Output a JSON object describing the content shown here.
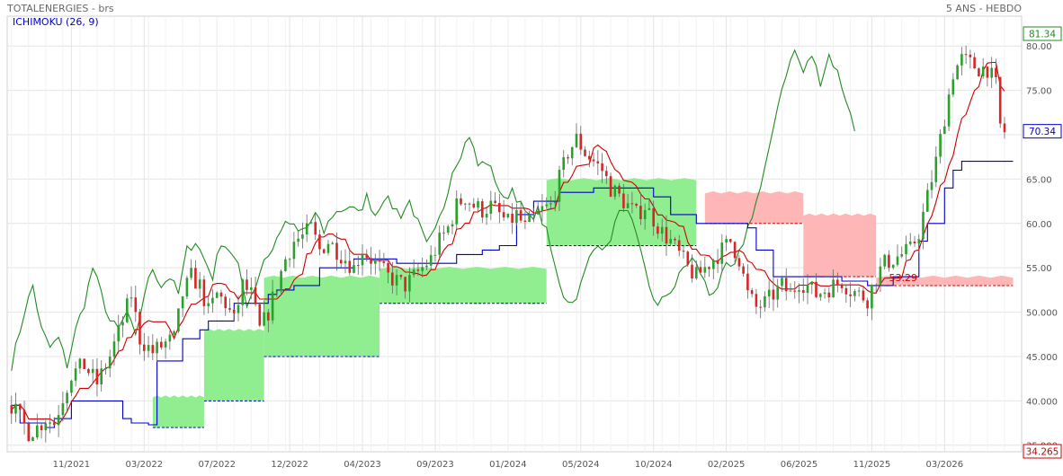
{
  "header": {
    "title": "TOTALENERGIES - brs",
    "period": "5 ANS - HEBDO",
    "indicator": "ICHIMOKU (26, 9)"
  },
  "colors": {
    "bull_candle": "#2ca02c",
    "bear_candle": "#d62728",
    "tenkan": "#cc0000",
    "kijun": "#0000cc",
    "chikou": "#228b22",
    "kumo_bull_fill": "#90ee90",
    "kumo_bear_fill": "#ffb6b6",
    "grid": "#e4e4e4",
    "axis_text": "#555555"
  },
  "chart_data": {
    "type": "candlestick",
    "title": "TOTALENERGIES - brs",
    "subtitle": "5 ANS - HEBDO",
    "indicator": "ICHIMOKU (26, 9)",
    "ylim": [
      34.265,
      81.34
    ],
    "y_ticks": [
      35,
      40,
      45,
      50,
      55,
      60,
      65,
      70,
      75,
      80
    ],
    "y_tick_labels": [
      "35.000",
      "40.000",
      "45.000",
      "50.000",
      "55.00",
      "60.00",
      "65.00",
      "70.00",
      "75.00",
      "80.00"
    ],
    "x_ticks": [
      {
        "label": "11/2021",
        "week": 14
      },
      {
        "label": "03/2022",
        "week": 31
      },
      {
        "label": "07/2022",
        "week": 48
      },
      {
        "label": "12/2022",
        "week": 65
      },
      {
        "label": "04/2023",
        "week": 82
      },
      {
        "label": "09/2023",
        "week": 99
      },
      {
        "label": "01/2024",
        "week": 116
      },
      {
        "label": "05/2024",
        "week": 133
      },
      {
        "label": "10/2024",
        "week": 150
      },
      {
        "label": "02/2025",
        "week": 167
      },
      {
        "label": "06/2025",
        "week": 184
      },
      {
        "label": "11/2025",
        "week": 201
      },
      {
        "label": "03/2026",
        "week": 218
      }
    ],
    "x_range": [
      -1,
      236
    ],
    "price_anchors": [
      [
        0,
        39.5
      ],
      [
        2,
        38.0
      ],
      [
        4,
        36.5
      ],
      [
        6,
        37.0
      ],
      [
        8,
        38.0
      ],
      [
        10,
        37.5
      ],
      [
        12,
        40.5
      ],
      [
        14,
        43.0
      ],
      [
        17,
        44.0
      ],
      [
        20,
        42.0
      ],
      [
        23,
        45.0
      ],
      [
        26,
        49.0
      ],
      [
        28,
        52.0
      ],
      [
        30,
        47.0
      ],
      [
        33,
        45.5
      ],
      [
        36,
        46.5
      ],
      [
        38,
        47.0
      ],
      [
        40,
        52.0
      ],
      [
        42,
        54.0
      ],
      [
        44,
        53.0
      ],
      [
        46,
        50.0
      ],
      [
        48,
        52.0
      ],
      [
        50,
        51.0
      ],
      [
        52,
        49.0
      ],
      [
        54,
        53.0
      ],
      [
        56,
        52.0
      ],
      [
        58,
        48.0
      ],
      [
        60,
        50.0
      ],
      [
        62,
        53.0
      ],
      [
        64,
        56.0
      ],
      [
        66,
        58.0
      ],
      [
        68,
        58.5
      ],
      [
        70,
        59.5
      ],
      [
        72,
        57.0
      ],
      [
        74,
        58.0
      ],
      [
        76,
        57.0
      ],
      [
        78,
        56.0
      ],
      [
        80,
        55.0
      ],
      [
        82,
        57.0
      ],
      [
        84,
        56.0
      ],
      [
        86,
        55.0
      ],
      [
        88,
        54.0
      ],
      [
        90,
        53.5
      ],
      [
        92,
        53.0
      ],
      [
        94,
        54.0
      ],
      [
        96,
        55.0
      ],
      [
        98,
        56.0
      ],
      [
        100,
        58.0
      ],
      [
        102,
        59.5
      ],
      [
        104,
        62.0
      ],
      [
        106,
        63.0
      ],
      [
        108,
        62.0
      ],
      [
        110,
        61.5
      ],
      [
        112,
        62.0
      ],
      [
        114,
        61.0
      ],
      [
        116,
        60.0
      ],
      [
        118,
        61.0
      ],
      [
        120,
        59.5
      ],
      [
        122,
        60.5
      ],
      [
        124,
        61.5
      ],
      [
        126,
        62.0
      ],
      [
        128,
        65.0
      ],
      [
        130,
        68.0
      ],
      [
        132,
        69.5
      ],
      [
        134,
        68.0
      ],
      [
        136,
        67.0
      ],
      [
        138,
        66.0
      ],
      [
        140,
        64.0
      ],
      [
        142,
        63.0
      ],
      [
        144,
        62.0
      ],
      [
        146,
        61.0
      ],
      [
        148,
        62.0
      ],
      [
        150,
        60.5
      ],
      [
        152,
        59.0
      ],
      [
        154,
        58.0
      ],
      [
        156,
        56.5
      ],
      [
        158,
        55.0
      ],
      [
        160,
        54.0
      ],
      [
        162,
        55.0
      ],
      [
        164,
        56.0
      ],
      [
        166,
        57.0
      ],
      [
        168,
        58.0
      ],
      [
        170,
        56.0
      ],
      [
        172,
        52.0
      ],
      [
        174,
        50.5
      ],
      [
        176,
        51.0
      ],
      [
        178,
        52.0
      ],
      [
        180,
        53.0
      ],
      [
        182,
        52.0
      ],
      [
        184,
        53.5
      ],
      [
        186,
        53.0
      ],
      [
        188,
        52.0
      ],
      [
        190,
        52.5
      ],
      [
        192,
        53.0
      ],
      [
        194,
        53.5
      ],
      [
        196,
        52.5
      ],
      [
        198,
        52.0
      ],
      [
        200,
        51.5
      ],
      [
        202,
        54.0
      ],
      [
        204,
        55.5
      ],
      [
        206,
        56.0
      ],
      [
        208,
        56.5
      ],
      [
        210,
        57.0
      ],
      [
        212,
        59.0
      ],
      [
        214,
        63.0
      ],
      [
        216,
        67.0
      ],
      [
        218,
        72.0
      ],
      [
        220,
        77.0
      ],
      [
        222,
        78.5
      ],
      [
        224,
        78.0
      ],
      [
        226,
        77.5
      ],
      [
        228,
        77.5
      ],
      [
        230,
        75.5
      ],
      [
        231,
        71.0
      ],
      [
        232,
        70.34
      ]
    ],
    "kumo_segments": [
      {
        "kind": "bull",
        "x0": 33,
        "x1": 45,
        "top": 40.5,
        "bottom": 37.0
      },
      {
        "kind": "bull",
        "x0": 45,
        "x1": 59,
        "top": 48.0,
        "bottom": 40.0
      },
      {
        "kind": "bull",
        "x0": 59,
        "x1": 86,
        "top": 54.0,
        "bottom": 45.0
      },
      {
        "kind": "bull",
        "x0": 86,
        "x1": 125,
        "top": 55.0,
        "bottom": 51.0
      },
      {
        "kind": "bull",
        "x0": 125,
        "x1": 160,
        "top": 65.0,
        "bottom": 57.5
      },
      {
        "kind": "bear",
        "x0": 162,
        "x1": 185,
        "top": 63.5,
        "bottom": 60.0
      },
      {
        "kind": "bear",
        "x0": 185,
        "x1": 202,
        "top": 61.0,
        "bottom": 54.0
      },
      {
        "kind": "bear",
        "x0": 202,
        "x1": 234,
        "top": 54.0,
        "bottom": 53.0
      }
    ],
    "chikou_anchors": [
      [
        0,
        44.0
      ],
      [
        3,
        50.0
      ],
      [
        5,
        53.0
      ],
      [
        7,
        48.0
      ],
      [
        9,
        46.0
      ],
      [
        11,
        47.0
      ],
      [
        13,
        44.0
      ],
      [
        15,
        48.0
      ],
      [
        17,
        51.0
      ],
      [
        19,
        55.0
      ],
      [
        21,
        52.0
      ],
      [
        23,
        49.0
      ],
      [
        25,
        48.0
      ],
      [
        27,
        50.0
      ],
      [
        29,
        47.0
      ],
      [
        31,
        52.0
      ],
      [
        33,
        55.0
      ],
      [
        35,
        53.0
      ],
      [
        37,
        54.0
      ],
      [
        39,
        52.0
      ],
      [
        41,
        57.0
      ],
      [
        43,
        58.0
      ],
      [
        45,
        56.0
      ],
      [
        47,
        54.0
      ],
      [
        49,
        58.0
      ],
      [
        51,
        57.0
      ],
      [
        53,
        55.0
      ],
      [
        55,
        51.0
      ],
      [
        57,
        53.0
      ],
      [
        59,
        56.0
      ],
      [
        61,
        57.0
      ],
      [
        63,
        59.5
      ],
      [
        65,
        60.0
      ],
      [
        67,
        59.0
      ],
      [
        69,
        59.5
      ],
      [
        71,
        61.0
      ],
      [
        73,
        59.0
      ],
      [
        75,
        61.0
      ],
      [
        77,
        61.5
      ],
      [
        79,
        62.0
      ],
      [
        81,
        61.0
      ],
      [
        83,
        63.0
      ],
      [
        85,
        61.0
      ],
      [
        87,
        63.0
      ],
      [
        89,
        62.0
      ],
      [
        91,
        61.0
      ],
      [
        93,
        62.5
      ],
      [
        95,
        60.0
      ],
      [
        97,
        57.5
      ],
      [
        99,
        59.0
      ],
      [
        101,
        62.0
      ],
      [
        103,
        66.0
      ],
      [
        105,
        68.0
      ],
      [
        107,
        70.0
      ],
      [
        109,
        66.5
      ],
      [
        111,
        67.0
      ],
      [
        113,
        65.0
      ],
      [
        115,
        62.5
      ],
      [
        117,
        64.0
      ],
      [
        119,
        62.0
      ],
      [
        121,
        60.5
      ],
      [
        123,
        61.5
      ],
      [
        125,
        59.0
      ],
      [
        127,
        55.0
      ],
      [
        129,
        52.0
      ],
      [
        131,
        51.0
      ],
      [
        133,
        53.0
      ],
      [
        135,
        56.0
      ],
      [
        137,
        58.0
      ],
      [
        139,
        57.0
      ],
      [
        141,
        60.0
      ],
      [
        143,
        62.0
      ],
      [
        145,
        60.0
      ],
      [
        147,
        56.5
      ],
      [
        149,
        53.0
      ],
      [
        151,
        50.5
      ],
      [
        153,
        52.0
      ],
      [
        155,
        53.0
      ],
      [
        157,
        55.0
      ],
      [
        159,
        56.0
      ],
      [
        161,
        54.5
      ],
      [
        163,
        52.0
      ],
      [
        165,
        53.0
      ],
      [
        167,
        55.0
      ],
      [
        169,
        55.0
      ],
      [
        171,
        58.0
      ],
      [
        173,
        61.0
      ],
      [
        175,
        64.0
      ],
      [
        177,
        68.0
      ],
      [
        179,
        73.5
      ],
      [
        181,
        77.0
      ],
      [
        183,
        79.5
      ],
      [
        185,
        77.0
      ],
      [
        187,
        79.0
      ],
      [
        189,
        76.0
      ],
      [
        191,
        79.0
      ],
      [
        193,
        77.0
      ],
      [
        195,
        74.0
      ],
      [
        197,
        70.5
      ]
    ],
    "kijun_steps": [
      [
        0,
        39.5
      ],
      [
        2,
        37.5
      ],
      [
        8,
        37.0
      ],
      [
        10,
        38.0
      ],
      [
        14,
        40.0
      ],
      [
        22,
        40.0
      ],
      [
        26,
        38.0
      ],
      [
        28,
        37.5
      ],
      [
        32,
        37.3
      ],
      [
        34,
        44.5
      ],
      [
        38,
        44.5
      ],
      [
        40,
        47.0
      ],
      [
        44,
        48.0
      ],
      [
        46,
        49.0
      ],
      [
        52,
        51.0
      ],
      [
        58,
        51.0
      ],
      [
        60,
        52.0
      ],
      [
        62,
        52.5
      ],
      [
        66,
        53.0
      ],
      [
        70,
        53.0
      ],
      [
        72,
        55.0
      ],
      [
        80,
        56.0
      ],
      [
        88,
        56.0
      ],
      [
        90,
        55.5
      ],
      [
        98,
        55.5
      ],
      [
        104,
        56.5
      ],
      [
        110,
        57.0
      ],
      [
        114,
        57.5
      ],
      [
        118,
        61.0
      ],
      [
        122,
        62.5
      ],
      [
        128,
        63.5
      ],
      [
        136,
        64.0
      ],
      [
        144,
        64.0
      ],
      [
        150,
        63.0
      ],
      [
        154,
        61.0
      ],
      [
        160,
        60.0
      ],
      [
        166,
        60.0
      ],
      [
        172,
        59.5
      ],
      [
        174,
        57.0
      ],
      [
        178,
        54.0
      ],
      [
        184,
        54.0
      ],
      [
        194,
        53.5
      ],
      [
        200,
        53.0
      ],
      [
        206,
        54.0
      ],
      [
        212,
        58.0
      ],
      [
        214,
        60.0
      ],
      [
        218,
        64.0
      ],
      [
        220,
        66.0
      ],
      [
        222,
        67.0
      ],
      [
        226,
        67.0
      ],
      [
        234,
        67.0
      ]
    ],
    "tenkan_offset": 0.4,
    "last_price": 70.34,
    "labels_right": [
      {
        "value": 81.34,
        "text": "81.34",
        "color": "#228b22"
      },
      {
        "value": 70.34,
        "text": "70.34",
        "color": "#0000cc"
      },
      {
        "value": 34.265,
        "text": "34.265",
        "color": "#cc0000"
      }
    ],
    "annotations": [
      {
        "text": "53.29",
        "x": 205,
        "y": 53.29,
        "color": "#cc0000"
      }
    ]
  }
}
